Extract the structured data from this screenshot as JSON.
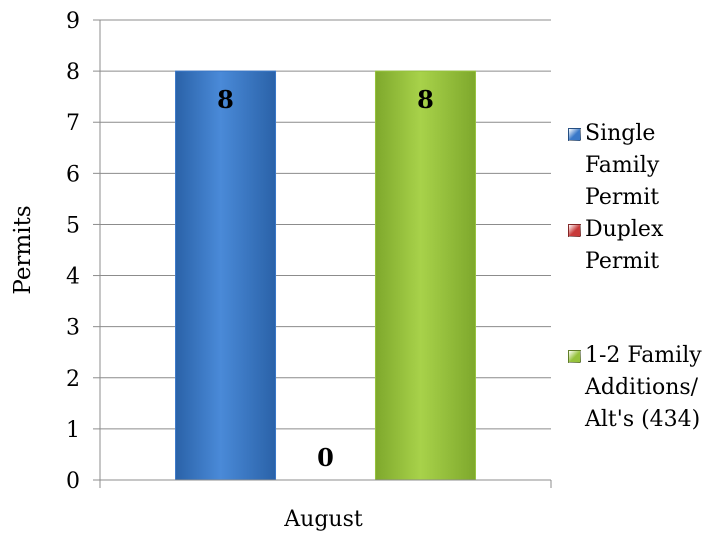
{
  "chart_data": {
    "type": "bar",
    "title": "",
    "xlabel": "",
    "ylabel": "Permits",
    "ylim": [
      0,
      9
    ],
    "yticks": [
      "0",
      "1",
      "2",
      "3",
      "4",
      "5",
      "6",
      "7",
      "8",
      "9"
    ],
    "categories": [
      "August"
    ],
    "grid": true,
    "legend_position": "right",
    "series": [
      {
        "name": "Single Family Permit",
        "values": [
          8
        ],
        "label": "8",
        "color": "#3a78c8"
      },
      {
        "name": "Duplex Permit",
        "values": [
          0
        ],
        "label": "0",
        "color": "#c83a3a"
      },
      {
        "name": "1-2 Family Additions/ Alt's (434)",
        "values": [
          8
        ],
        "label": "8",
        "color": "#96c23c"
      }
    ]
  }
}
